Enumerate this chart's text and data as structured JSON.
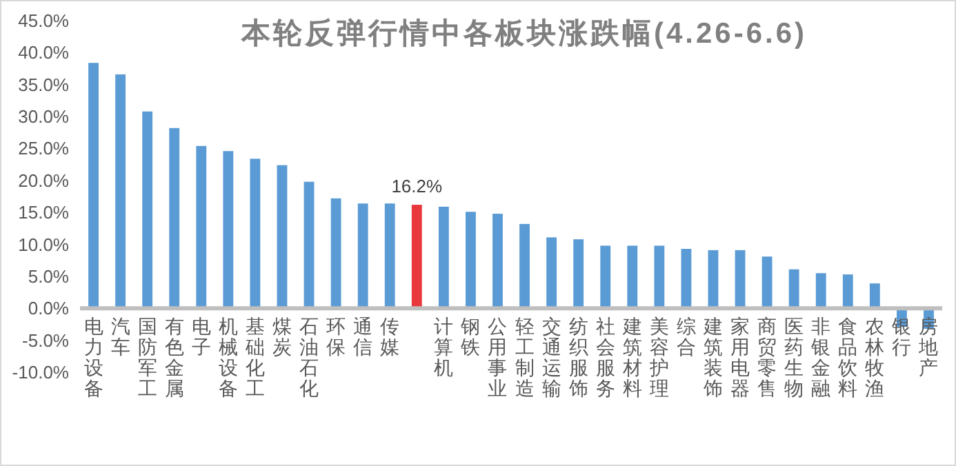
{
  "chart_data": {
    "type": "bar",
    "title": "本轮反弹行情中各板块涨跌幅(4.26-6.6)",
    "categories": [
      "电力设备",
      "汽车",
      "国防军工",
      "有色金属",
      "电子",
      "机械设备",
      "基础化工",
      "煤炭",
      "石油石化",
      "环保",
      "通信",
      "传媒",
      null,
      "计算机",
      "钢铁",
      "公用事业",
      "轻工制造",
      "交通运输",
      "纺织服饰",
      "社会服务",
      "建筑材料",
      "美容护理",
      "综合",
      "建筑装饰",
      "家用电器",
      "商贸零售",
      "医药生物",
      "非银金融",
      "食品饮料",
      "农林牧渔",
      "银行",
      "房地产"
    ],
    "values": [
      38.4,
      36.6,
      30.8,
      28.2,
      25.4,
      24.6,
      23.4,
      22.4,
      19.8,
      17.2,
      16.4,
      16.4,
      16.2,
      15.9,
      15.1,
      14.8,
      13.2,
      11.1,
      10.8,
      9.8,
      9.8,
      9.8,
      9.3,
      9.1,
      9.1,
      8.1,
      6.1,
      5.5,
      5.3,
      3.9,
      -2.9,
      -3.2
    ],
    "colors": [
      "#5b9bd5",
      "#5b9bd5",
      "#5b9bd5",
      "#5b9bd5",
      "#5b9bd5",
      "#5b9bd5",
      "#5b9bd5",
      "#5b9bd5",
      "#5b9bd5",
      "#5b9bd5",
      "#5b9bd5",
      "#5b9bd5",
      "#e8383d",
      "#5b9bd5",
      "#5b9bd5",
      "#5b9bd5",
      "#5b9bd5",
      "#5b9bd5",
      "#5b9bd5",
      "#5b9bd5",
      "#5b9bd5",
      "#5b9bd5",
      "#5b9bd5",
      "#5b9bd5",
      "#5b9bd5",
      "#5b9bd5",
      "#5b9bd5",
      "#5b9bd5",
      "#5b9bd5",
      "#5b9bd5",
      "#5b9bd5",
      "#5b9bd5"
    ],
    "value_labels": [
      null,
      null,
      null,
      null,
      null,
      null,
      null,
      null,
      null,
      null,
      null,
      null,
      "16.2%",
      null,
      null,
      null,
      null,
      null,
      null,
      null,
      null,
      null,
      null,
      null,
      null,
      null,
      null,
      null,
      null,
      null,
      null,
      null
    ],
    "ylim": [
      -10,
      45
    ],
    "yticks": [
      {
        "value": -10,
        "label": "-10.0%"
      },
      {
        "value": -5,
        "label": "-5.0%"
      },
      {
        "value": 0,
        "label": "0.0%"
      },
      {
        "value": 5,
        "label": "5.0%"
      },
      {
        "value": 10,
        "label": "10.0%"
      },
      {
        "value": 15,
        "label": "15.0%"
      },
      {
        "value": 20,
        "label": "20.0%"
      },
      {
        "value": 25,
        "label": "25.0%"
      },
      {
        "value": 30,
        "label": "30.0%"
      },
      {
        "value": 35,
        "label": "35.0%"
      },
      {
        "value": 40,
        "label": "40.0%"
      },
      {
        "value": 45,
        "label": "45.0%"
      }
    ]
  }
}
